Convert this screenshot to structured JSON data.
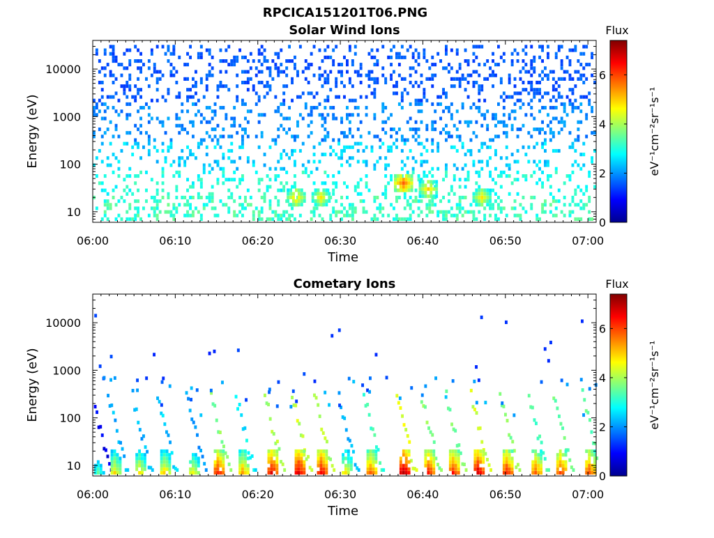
{
  "figure_title": "RPCICA151201T06.PNG",
  "chart_data": [
    {
      "type": "heatmap",
      "title": "Solar Wind Ions",
      "xlabel": "Time",
      "ylabel": "Energy (eV)",
      "x_ticks": [
        "06:00",
        "06:10",
        "06:20",
        "06:30",
        "06:40",
        "06:50",
        "07:00"
      ],
      "x_range_minutes": [
        0,
        61
      ],
      "y_scale": "log",
      "y_ticks": [
        10,
        100,
        1000,
        10000
      ],
      "y_tick_labels": [
        "10",
        "100",
        "1000",
        "10000"
      ],
      "y_range": [
        6,
        40000
      ],
      "colorbar": {
        "label": "Flux",
        "unit": "eV⁻¹cm⁻²sr⁻¹s⁻¹",
        "range": [
          0,
          7.4
        ],
        "ticks": [
          "0",
          "2",
          "4",
          "6"
        ]
      },
      "features": [
        {
          "desc": "sparse counts 100-10000 eV",
          "flux": 1.5
        },
        {
          "time_min": 24.5,
          "energy": 20,
          "flux": 5.0
        },
        {
          "time_min": 27.5,
          "energy": 20,
          "flux": 4.8
        },
        {
          "time_min": 37.5,
          "energy": 40,
          "flux": 5.8
        },
        {
          "time_min": 40.5,
          "energy": 30,
          "flux": 5.0
        },
        {
          "time_min": 47.0,
          "energy": 20,
          "flux": 4.8
        }
      ]
    },
    {
      "type": "heatmap",
      "title": "Cometary Ions",
      "xlabel": "Time",
      "ylabel": "Energy (eV)",
      "x_ticks": [
        "06:00",
        "06:10",
        "06:20",
        "06:30",
        "06:40",
        "06:50",
        "07:00"
      ],
      "x_range_minutes": [
        0,
        61
      ],
      "y_scale": "log",
      "y_ticks": [
        10,
        100,
        1000,
        10000
      ],
      "y_tick_labels": [
        "10",
        "100",
        "1000",
        "10000"
      ],
      "y_range": [
        6,
        40000
      ],
      "colorbar": {
        "label": "Flux",
        "unit": "eV⁻¹cm⁻²sr⁻¹s⁻¹",
        "range": [
          0,
          7.4
        ],
        "ticks": [
          "0",
          "2",
          "4",
          "6"
        ]
      },
      "bursts": [
        {
          "time_min": 0.5,
          "peak_flux": 3.6
        },
        {
          "time_min": 2.5,
          "peak_flux": 5.0
        },
        {
          "time_min": 5.5,
          "peak_flux": 5.0
        },
        {
          "time_min": 8.5,
          "peak_flux": 5.2
        },
        {
          "time_min": 12.0,
          "peak_flux": 4.8
        },
        {
          "time_min": 15.0,
          "peak_flux": 6.5
        },
        {
          "time_min": 18.0,
          "peak_flux": 5.5
        },
        {
          "time_min": 21.5,
          "peak_flux": 6.8
        },
        {
          "time_min": 24.8,
          "peak_flux": 7.0
        },
        {
          "time_min": 27.5,
          "peak_flux": 6.8
        },
        {
          "time_min": 30.5,
          "peak_flux": 5.0
        },
        {
          "time_min": 33.5,
          "peak_flux": 6.0
        },
        {
          "time_min": 37.5,
          "peak_flux": 7.2
        },
        {
          "time_min": 40.5,
          "peak_flux": 6.5
        },
        {
          "time_min": 43.5,
          "peak_flux": 6.5
        },
        {
          "time_min": 46.5,
          "peak_flux": 7.0
        },
        {
          "time_min": 50.0,
          "peak_flux": 6.5
        },
        {
          "time_min": 53.5,
          "peak_flux": 6.0
        },
        {
          "time_min": 56.5,
          "peak_flux": 6.3
        },
        {
          "time_min": 60.0,
          "peak_flux": 6.2
        }
      ]
    }
  ]
}
